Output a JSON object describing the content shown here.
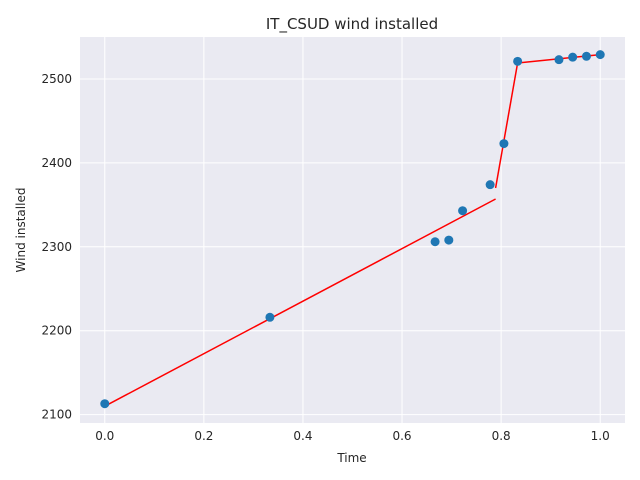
{
  "chart_data": {
    "type": "scatter",
    "title": "IT_CSUD wind installed",
    "xlabel": "Time",
    "ylabel": "Wind installed",
    "xlim": [
      -0.05,
      1.05
    ],
    "ylim": [
      2090,
      2550
    ],
    "xticks": [
      0.0,
      0.2,
      0.4,
      0.6,
      0.8,
      1.0
    ],
    "xtick_labels": [
      "0.0",
      "0.2",
      "0.4",
      "0.6",
      "0.8",
      "1.0"
    ],
    "yticks": [
      2100,
      2200,
      2300,
      2400,
      2500
    ],
    "ytick_labels": [
      "2100",
      "2200",
      "2300",
      "2400",
      "2500"
    ],
    "grid": true,
    "points": {
      "x": [
        0.0,
        0.3333,
        0.6667,
        0.6944,
        0.7222,
        0.7778,
        0.8056,
        0.8333,
        0.9167,
        0.9444,
        0.9722,
        1.0
      ],
      "y": [
        2113,
        2216,
        2306,
        2308,
        2343,
        2374,
        2423,
        2521,
        2523,
        2526,
        2527,
        2529
      ]
    },
    "fit_segments": [
      {
        "x": [
          0.0,
          0.7889
        ],
        "y": [
          2110,
          2357
        ]
      },
      {
        "x": [
          0.7889,
          0.8333
        ],
        "y": [
          2370,
          2519
        ]
      },
      {
        "x": [
          0.8333,
          1.0
        ],
        "y": [
          2519,
          2529
        ]
      }
    ],
    "colors": {
      "background": "#eaeaf2",
      "points": "#1f77b4",
      "fit_line": "#ff0000",
      "grid": "#ffffff"
    }
  }
}
